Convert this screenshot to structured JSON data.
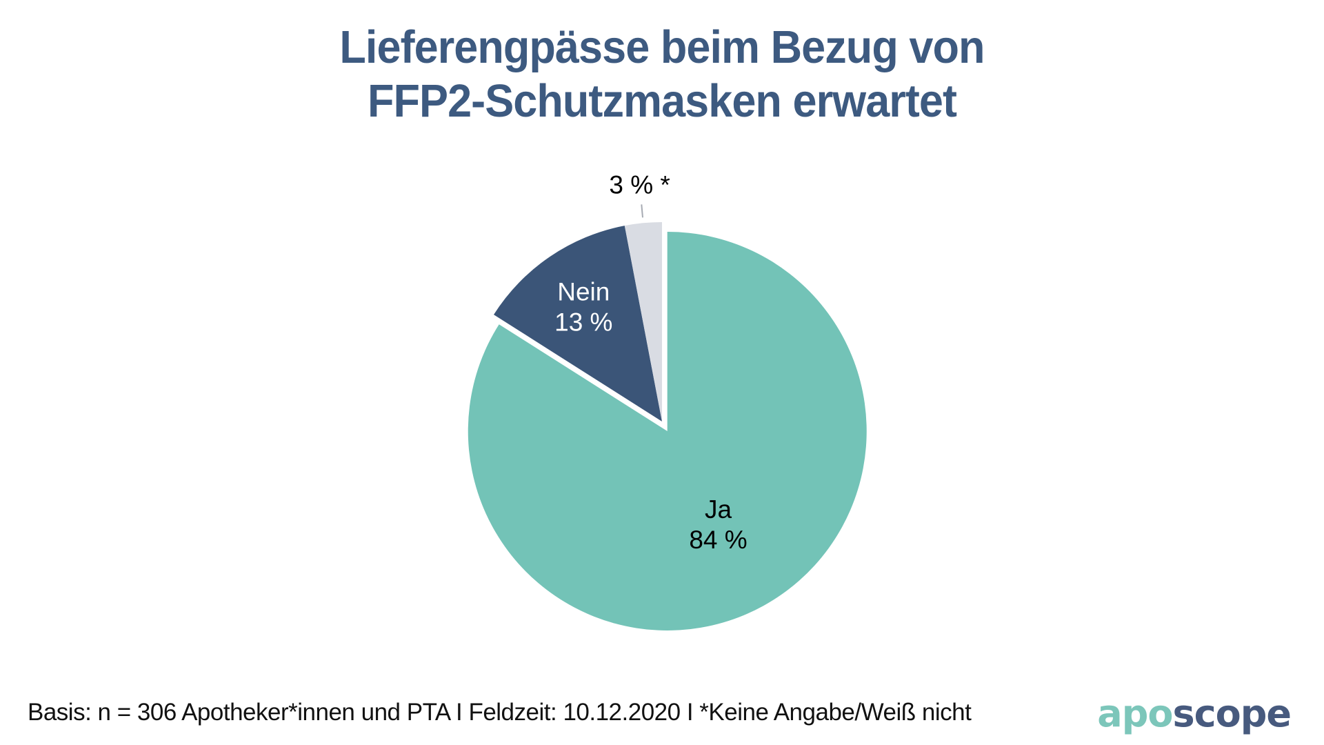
{
  "title": {
    "line1": "Lieferengpässe beim Bezug von",
    "line2": "FFP2-Schutzmasken erwartet"
  },
  "chart_data": {
    "type": "pie",
    "title": "Lieferengpässe beim Bezug von FFP2-Schutzmasken erwartet",
    "unit": "%",
    "start_angle_deg": 0,
    "direction": "clockwise",
    "legend": "none",
    "slices": [
      {
        "id": "ja",
        "name": "Ja",
        "value": 84,
        "value_label": "84 %",
        "color": "#73C3B7",
        "text_color": "#000000",
        "label_position": "inside"
      },
      {
        "id": "nein",
        "name": "Nein",
        "value": 13,
        "value_label": "13 %",
        "color": "#3B5578",
        "text_color": "#FFFFFF",
        "label_position": "inside"
      },
      {
        "id": "keine-angabe",
        "name": "Keine Angabe/Weiß nicht",
        "value": 3,
        "value_label": "3 % *",
        "color": "#D9DCE3",
        "text_color": "#000000",
        "label_position": "outside"
      }
    ]
  },
  "footer": {
    "text": "Basis: n = 306 Apotheker*innen und PTA I Feldzeit: 10.12.2020 I *Keine Angabe/Weiß nicht",
    "basis_n": "306",
    "feldzeit": "10.12.2020",
    "footnote": "*Keine Angabe/Weiß nicht"
  },
  "logo": {
    "part1": "apo",
    "part2": "scope"
  },
  "colors": {
    "background": "#FFFFFF",
    "title_text": "#3D5A80",
    "footer_text": "#111111",
    "logo_apo": "#7CC6BA",
    "logo_scope": "#475A7E",
    "leader_line": "#A6AAB2"
  }
}
